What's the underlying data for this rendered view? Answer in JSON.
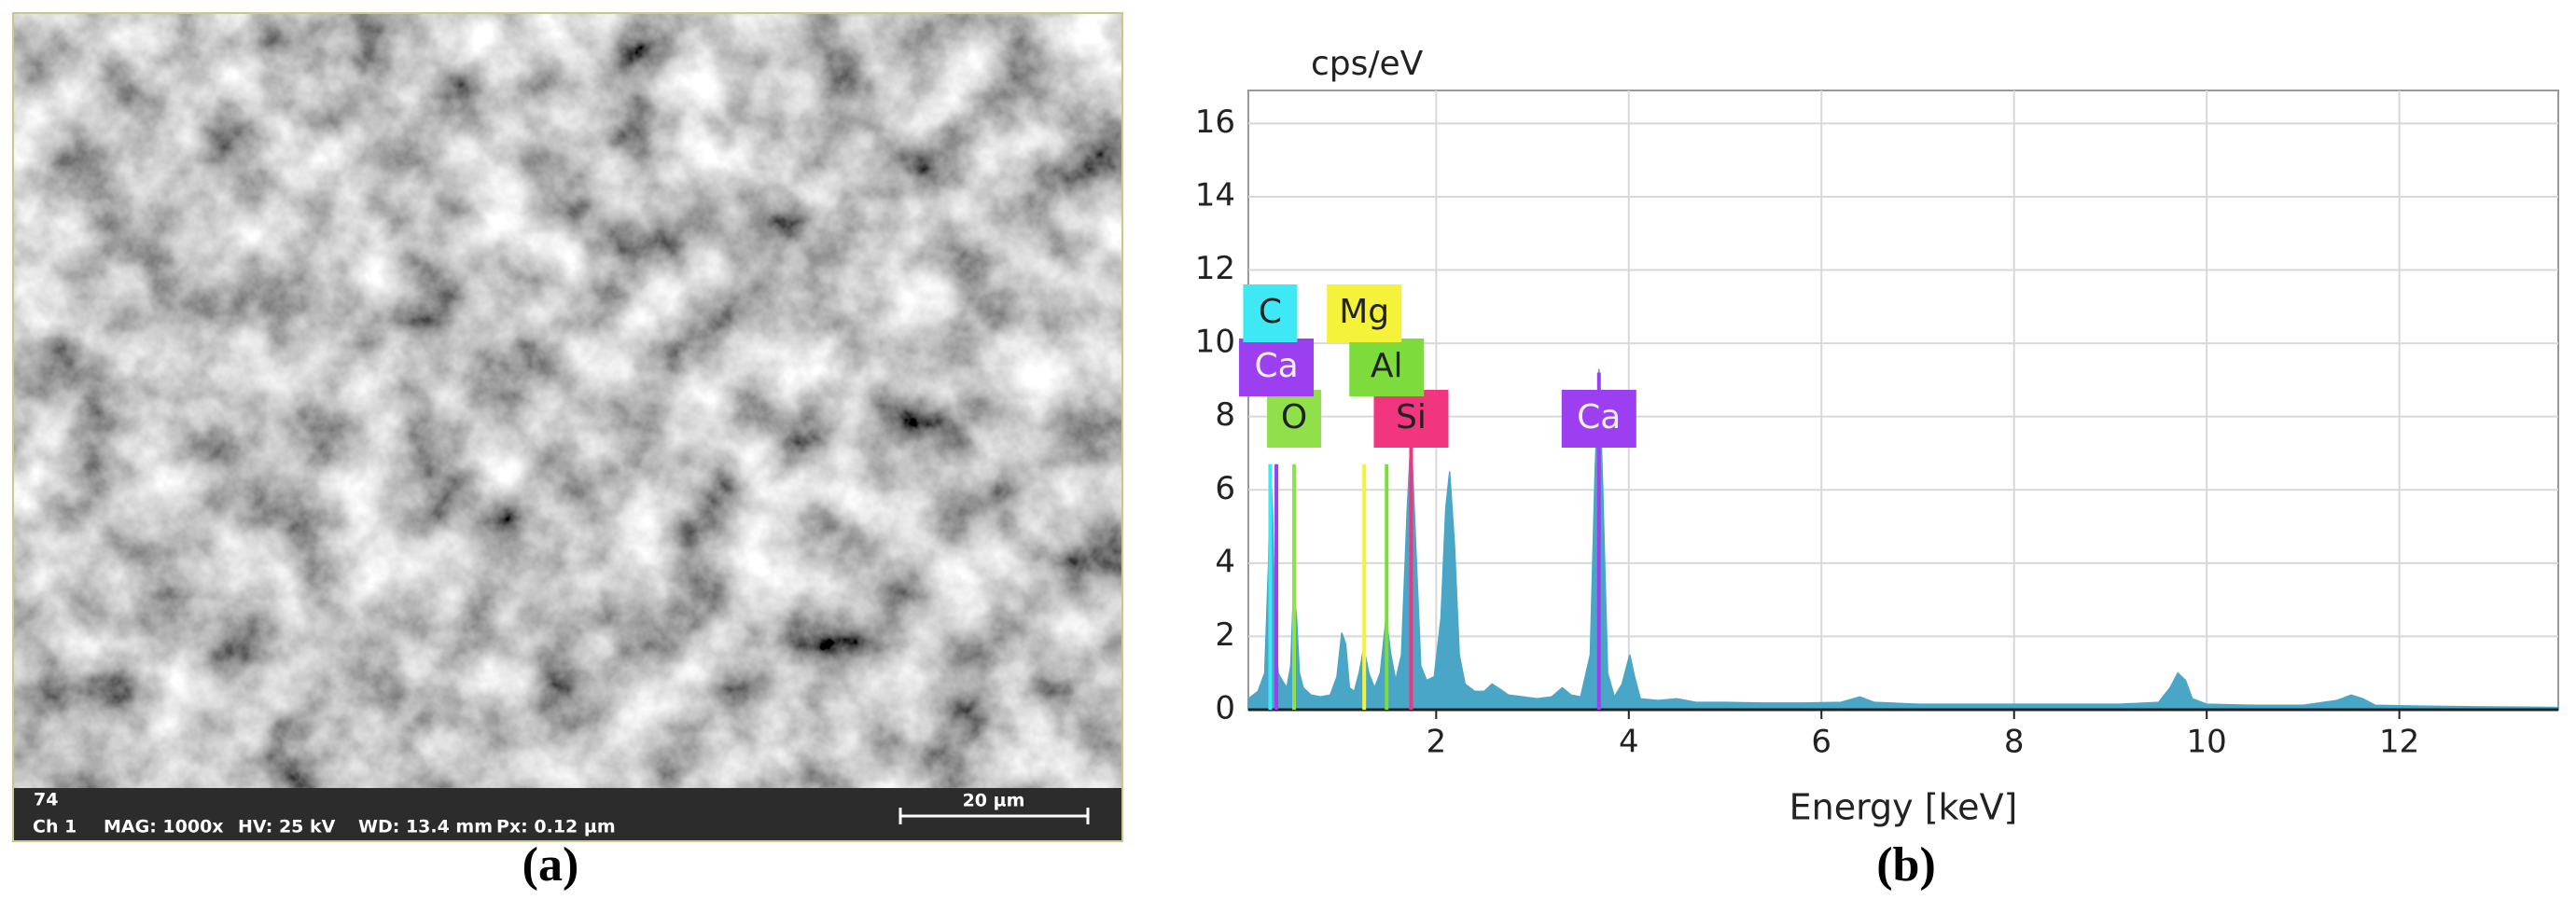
{
  "image_panel": {
    "frame_number": "74",
    "info": [
      "Ch 1",
      "MAG: 1000x",
      "HV: 25 kV",
      "WD: 13.4 mm",
      "Px: 0.12 µm"
    ],
    "scale_bar": "20 µm",
    "caption": "(a)"
  },
  "chart_data": {
    "type": "area",
    "y_label": "cps/eV",
    "x_label": "Energy [keV]",
    "caption": "(b)",
    "color": "#4aa6c6",
    "grid": true,
    "xlim": [
      0.05,
      13.65
    ],
    "ylim": [
      0,
      16.9
    ],
    "xticks": [
      2,
      4,
      6,
      8,
      10,
      12
    ],
    "yticks": [
      0,
      2,
      4,
      6,
      8,
      10,
      12,
      14,
      16
    ],
    "x": [
      0.05,
      0.15,
      0.22,
      0.26,
      0.28,
      0.3,
      0.33,
      0.36,
      0.4,
      0.45,
      0.49,
      0.52,
      0.55,
      0.58,
      0.62,
      0.7,
      0.8,
      0.9,
      0.97,
      1.02,
      1.06,
      1.1,
      1.15,
      1.2,
      1.25,
      1.3,
      1.36,
      1.42,
      1.48,
      1.53,
      1.58,
      1.64,
      1.7,
      1.74,
      1.78,
      1.84,
      1.9,
      1.98,
      2.05,
      2.1,
      2.14,
      2.19,
      2.24,
      2.3,
      2.4,
      2.5,
      2.58,
      2.64,
      2.75,
      2.9,
      3.05,
      3.2,
      3.31,
      3.4,
      3.5,
      3.6,
      3.65,
      3.69,
      3.73,
      3.78,
      3.85,
      3.93,
      4.01,
      4.06,
      4.12,
      4.3,
      4.5,
      4.7,
      5.0,
      5.4,
      5.8,
      6.2,
      6.4,
      6.55,
      7.0,
      7.5,
      8.0,
      8.6,
      9.1,
      9.5,
      9.62,
      9.7,
      9.78,
      9.85,
      10.0,
      10.5,
      11.0,
      11.35,
      11.5,
      11.62,
      11.75,
      12.2,
      12.8,
      13.3,
      13.65
    ],
    "values": [
      0.3,
      0.5,
      1.0,
      4.0,
      6.7,
      5.5,
      2.0,
      1.0,
      0.8,
      0.6,
      1.2,
      3.3,
      2.5,
      1.0,
      0.6,
      0.4,
      0.35,
      0.4,
      0.9,
      2.1,
      1.8,
      0.6,
      0.5,
      1.0,
      1.7,
      1.0,
      0.6,
      1.0,
      2.5,
      1.5,
      0.8,
      1.5,
      5.5,
      7.5,
      5.0,
      1.2,
      0.8,
      0.9,
      2.5,
      5.5,
      6.5,
      4.5,
      1.5,
      0.7,
      0.5,
      0.5,
      0.7,
      0.6,
      0.4,
      0.35,
      0.3,
      0.35,
      0.6,
      0.4,
      0.35,
      1.5,
      6.5,
      9.3,
      6.0,
      1.0,
      0.35,
      0.7,
      1.5,
      0.9,
      0.3,
      0.25,
      0.3,
      0.2,
      0.2,
      0.18,
      0.18,
      0.2,
      0.35,
      0.2,
      0.15,
      0.15,
      0.15,
      0.15,
      0.15,
      0.2,
      0.6,
      1.0,
      0.8,
      0.3,
      0.15,
      0.12,
      0.12,
      0.25,
      0.4,
      0.3,
      0.12,
      0.1,
      0.08,
      0.07,
      0.06
    ],
    "element_lines": [
      {
        "label": "O",
        "energy": 0.525,
        "height": 6.7,
        "color": "#8fe04a",
        "text_color": "#222222"
      },
      {
        "label": "Si",
        "energy": 1.74,
        "height": 7.3,
        "color": "#f2357f",
        "text_color": "#222222"
      },
      {
        "label": "Ca",
        "energy": 3.69,
        "height": 9.2,
        "color": "#9b3ff0",
        "text_color": "#f0f0f0"
      },
      {
        "label": "Ca",
        "energy": 0.341,
        "height": 6.7,
        "color": "#9b3ff0",
        "text_color": "#f0f0f0"
      },
      {
        "label": "Al",
        "energy": 1.486,
        "height": 6.7,
        "color": "#7ddc3c",
        "text_color": "#222222"
      },
      {
        "label": "C",
        "energy": 0.277,
        "height": 6.7,
        "color": "#3ee8f5",
        "text_color": "#222222"
      },
      {
        "label": "Mg",
        "energy": 1.253,
        "height": 6.7,
        "color": "#f5f23a",
        "text_color": "#222222"
      }
    ]
  }
}
